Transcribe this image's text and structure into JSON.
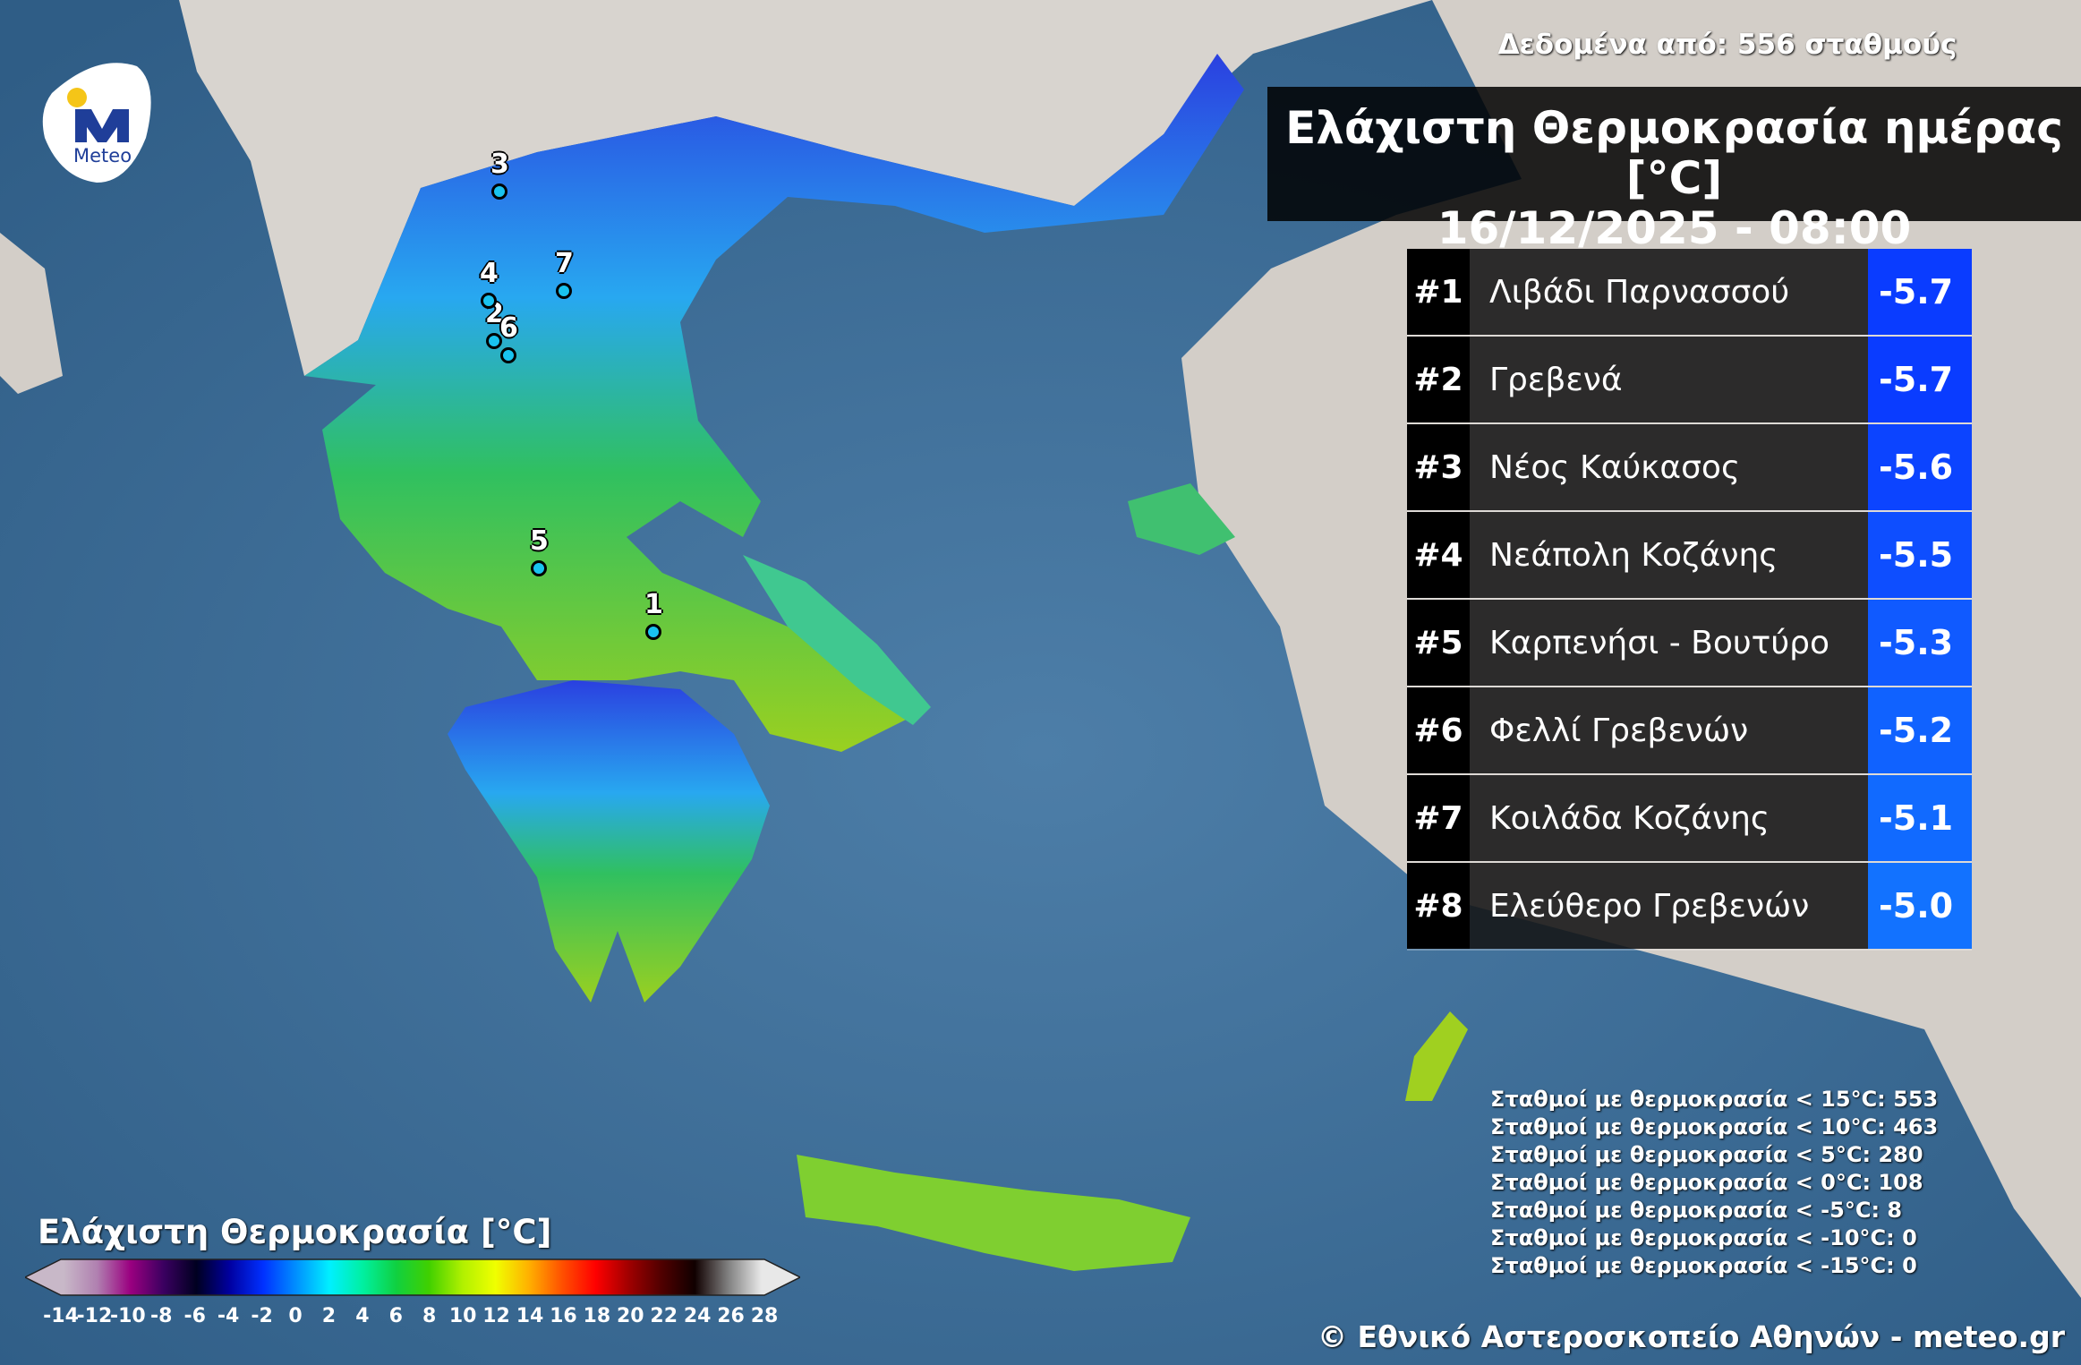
{
  "header": {
    "data_source": "Δεδομένα από: 556 σταθμούς",
    "title_line1": "Ελάχιστη Θερμοκρασία ημέρας [°C]",
    "title_line2": "16/12/2025 - 08:00"
  },
  "logo": {
    "text": "Meteo",
    "colors": {
      "blue": "#1f3e99",
      "yellow": "#f5c518"
    }
  },
  "ranking": [
    {
      "rank": "#1",
      "name": "Λιβάδι Παρνασσού",
      "value": "-5.7",
      "color": "#0a3cff"
    },
    {
      "rank": "#2",
      "name": "Γρεβενά",
      "value": "-5.7",
      "color": "#0a3cff"
    },
    {
      "rank": "#3",
      "name": "Νέος Καύκασος",
      "value": "-5.6",
      "color": "#0c44ff"
    },
    {
      "rank": "#4",
      "name": "Νεάπολη Κοζάνης",
      "value": "-5.5",
      "color": "#0e4eff"
    },
    {
      "rank": "#5",
      "name": "Καρπενήσι - Βουτύρο",
      "value": "-5.3",
      "color": "#105aff"
    },
    {
      "rank": "#6",
      "name": "Φελλί Γρεβενών",
      "value": "-5.2",
      "color": "#1062ff"
    },
    {
      "rank": "#7",
      "name": "Κοιλάδα Κοζάνης",
      "value": "-5.1",
      "color": "#116aff"
    },
    {
      "rank": "#8",
      "name": "Ελεύθερο Γρεβενών",
      "value": "-5.0",
      "color": "#1272ff"
    }
  ],
  "markers": [
    "1",
    "2",
    "3",
    "4",
    "5",
    "6",
    "7"
  ],
  "stats": [
    "Σταθμοί με θερμοκρασία < 15°C: 553",
    "Σταθμοί με θερμοκρασία < 10°C: 463",
    "Σταθμοί με θερμοκρασία < 5°C: 280",
    "Σταθμοί με θερμοκρασία < 0°C: 108",
    "Σταθμοί με θερμοκρασία < -5°C: 8",
    "Σταθμοί με θερμοκρασία < -10°C: 0",
    "Σταθμοί με θερμοκρασία < -15°C: 0"
  ],
  "legend": {
    "title": "Ελάχιστη Θερμοκρασία [°C]",
    "ticks": [
      "-14",
      "-12",
      "-10",
      "-8",
      "-6",
      "-4",
      "-2",
      "0",
      "2",
      "4",
      "6",
      "8",
      "10",
      "12",
      "14",
      "16",
      "18",
      "20",
      "22",
      "24",
      "26",
      "28"
    ],
    "colors": [
      "#c8b8c8",
      "#b080b0",
      "#9a0080",
      "#3a0060",
      "#000020",
      "#0000a0",
      "#0030ff",
      "#0090ff",
      "#00f0ff",
      "#00f0a0",
      "#10d040",
      "#40d000",
      "#b0f000",
      "#f0ff00",
      "#ffb000",
      "#ff5000",
      "#ff0000",
      "#a00000",
      "#500000",
      "#100000",
      "#808080",
      "#e8e8e8"
    ]
  },
  "copyright": "© Εθνικό Αστεροσκοπείο Αθηνών - meteo.gr"
}
